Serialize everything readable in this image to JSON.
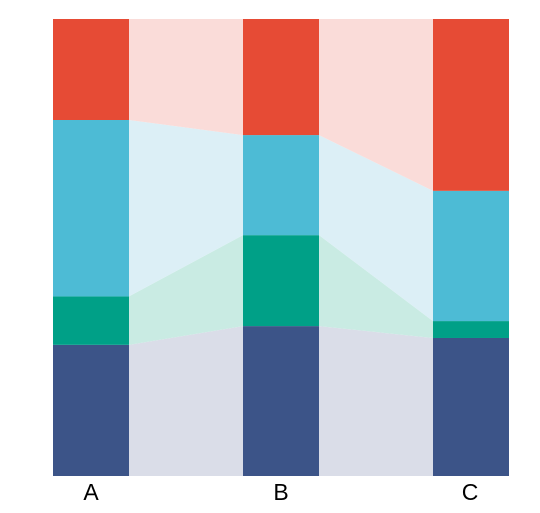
{
  "chart_data": {
    "type": "bar",
    "subtype": "stacked-100-with-flows",
    "title": "",
    "xlabel": "",
    "ylabel": "",
    "ylim": [
      0,
      1
    ],
    "grid": false,
    "legend": "none",
    "categories": [
      "A",
      "B",
      "C"
    ],
    "series": [
      {
        "values": [
          0.287,
          0.328,
          0.302
        ],
        "color": "#3C5488",
        "band_color": "#DADDE8"
      },
      {
        "values": [
          0.106,
          0.199,
          0.037
        ],
        "color": "#00A087",
        "band_color": "#C9EBE3"
      },
      {
        "values": [
          0.386,
          0.219,
          0.285
        ],
        "color": "#4DBBD5",
        "band_color": "#DCEFF6"
      },
      {
        "values": [
          0.221,
          0.254,
          0.376
        ],
        "color": "#E64B35",
        "band_color": "#FADCD9"
      }
    ]
  }
}
